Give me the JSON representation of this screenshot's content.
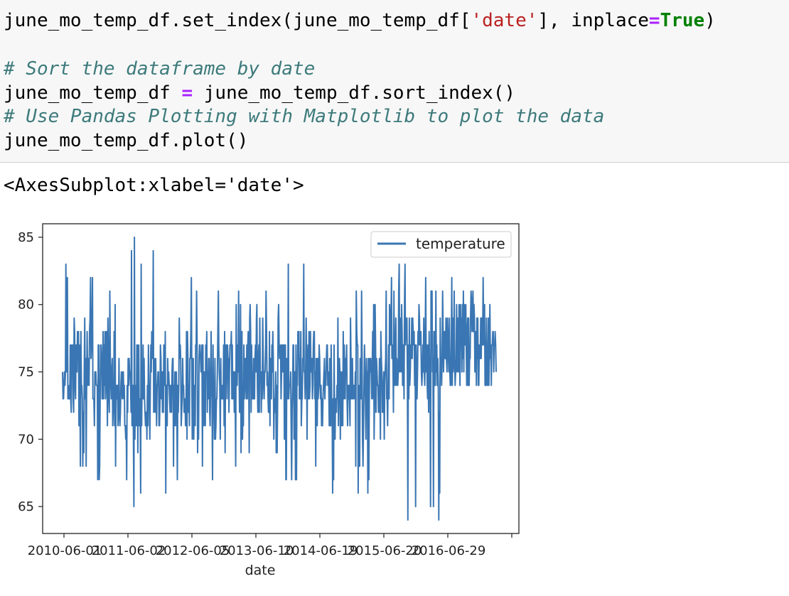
{
  "cell": {
    "line1": {
      "a": "june_mo_temp_df.set_index(june_mo_temp_df[",
      "str": "'date'",
      "b": "], inplace",
      "op": "=",
      "kw": "True",
      "c": ")"
    },
    "line2": "# Sort the dataframe by date",
    "line3": {
      "a": "june_mo_temp_df ",
      "op": "=",
      "b": " june_mo_temp_df.sort_index()"
    },
    "line4": "# Use Pandas Plotting with Matplotlib to plot the data",
    "line5": "june_mo_temp_df.plot()"
  },
  "output": {
    "repr": "<AxesSubplot:xlabel='date'>"
  },
  "chart_data": {
    "type": "line",
    "xlabel": "date",
    "ylabel": "",
    "ylim": [
      63,
      86
    ],
    "yticks": [
      65,
      70,
      75,
      80,
      85
    ],
    "xticks": [
      "2010-06-01",
      "2011-06-02",
      "2012-06-05",
      "2013-06-10",
      "2014-06-19",
      "2015-06-20",
      "2016-06-29"
    ],
    "xtick_display": [
      "2010-06-01",
      "2011-06-02",
      "2012-06-05",
      "2013-06-10",
      "2014-06-19",
      "2015-06-20",
      "2016-06-29"
    ],
    "legend": "top-right",
    "grid": false,
    "series": [
      {
        "name": "temperature",
        "color": "#3a76b3",
        "x": [
          "2010",
          "2011",
          "2012",
          "2013",
          "2014",
          "2015",
          "2016",
          "2017"
        ],
        "mean": [
          75.0,
          74.0,
          74.0,
          75.5,
          74.5,
          74.0,
          76.5,
          77.0
        ],
        "min": [
          67,
          65,
          67,
          68,
          66,
          66,
          64,
          74
        ],
        "max": [
          83,
          85,
          82,
          81,
          84,
          81,
          83,
          82
        ]
      }
    ]
  }
}
